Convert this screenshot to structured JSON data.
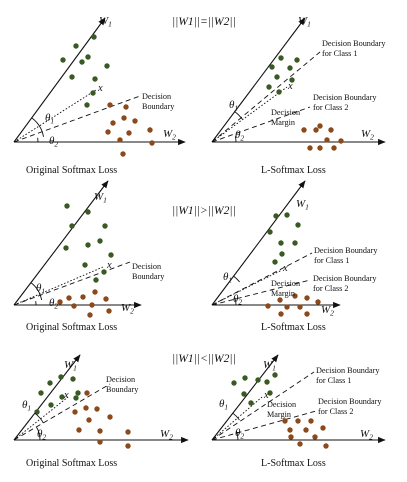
{
  "colors": {
    "class1": "#3a5a24",
    "class2": "#8a4a1c",
    "ink": "#111111",
    "background": "#ffffff"
  },
  "symbols": {
    "w": "W",
    "sub1": "1",
    "sub2": "2",
    "x": "x",
    "theta": "θ"
  },
  "labels": {
    "decision_boundary": [
      "Decision",
      "Boundary"
    ],
    "boundary_class1": [
      "Decision Boundary",
      "for Class 1"
    ],
    "boundary_class2": [
      "Decision Boundary",
      "for Class 2"
    ],
    "decision_margin": [
      "Decision",
      "Margin"
    ]
  },
  "rows": [
    {
      "condition": "||W1||=||W2||",
      "left_caption": "Original Softmax Loss",
      "right_caption": "L-Softmax Loss"
    },
    {
      "condition": "||W1||>||W2||",
      "left_caption": "Original Softmax Loss",
      "right_caption": "L-Softmax Loss"
    },
    {
      "condition": "||W1||<||W2||",
      "left_caption": "Original Softmax Loss",
      "right_caption": "L-Softmax Loss"
    }
  ]
}
